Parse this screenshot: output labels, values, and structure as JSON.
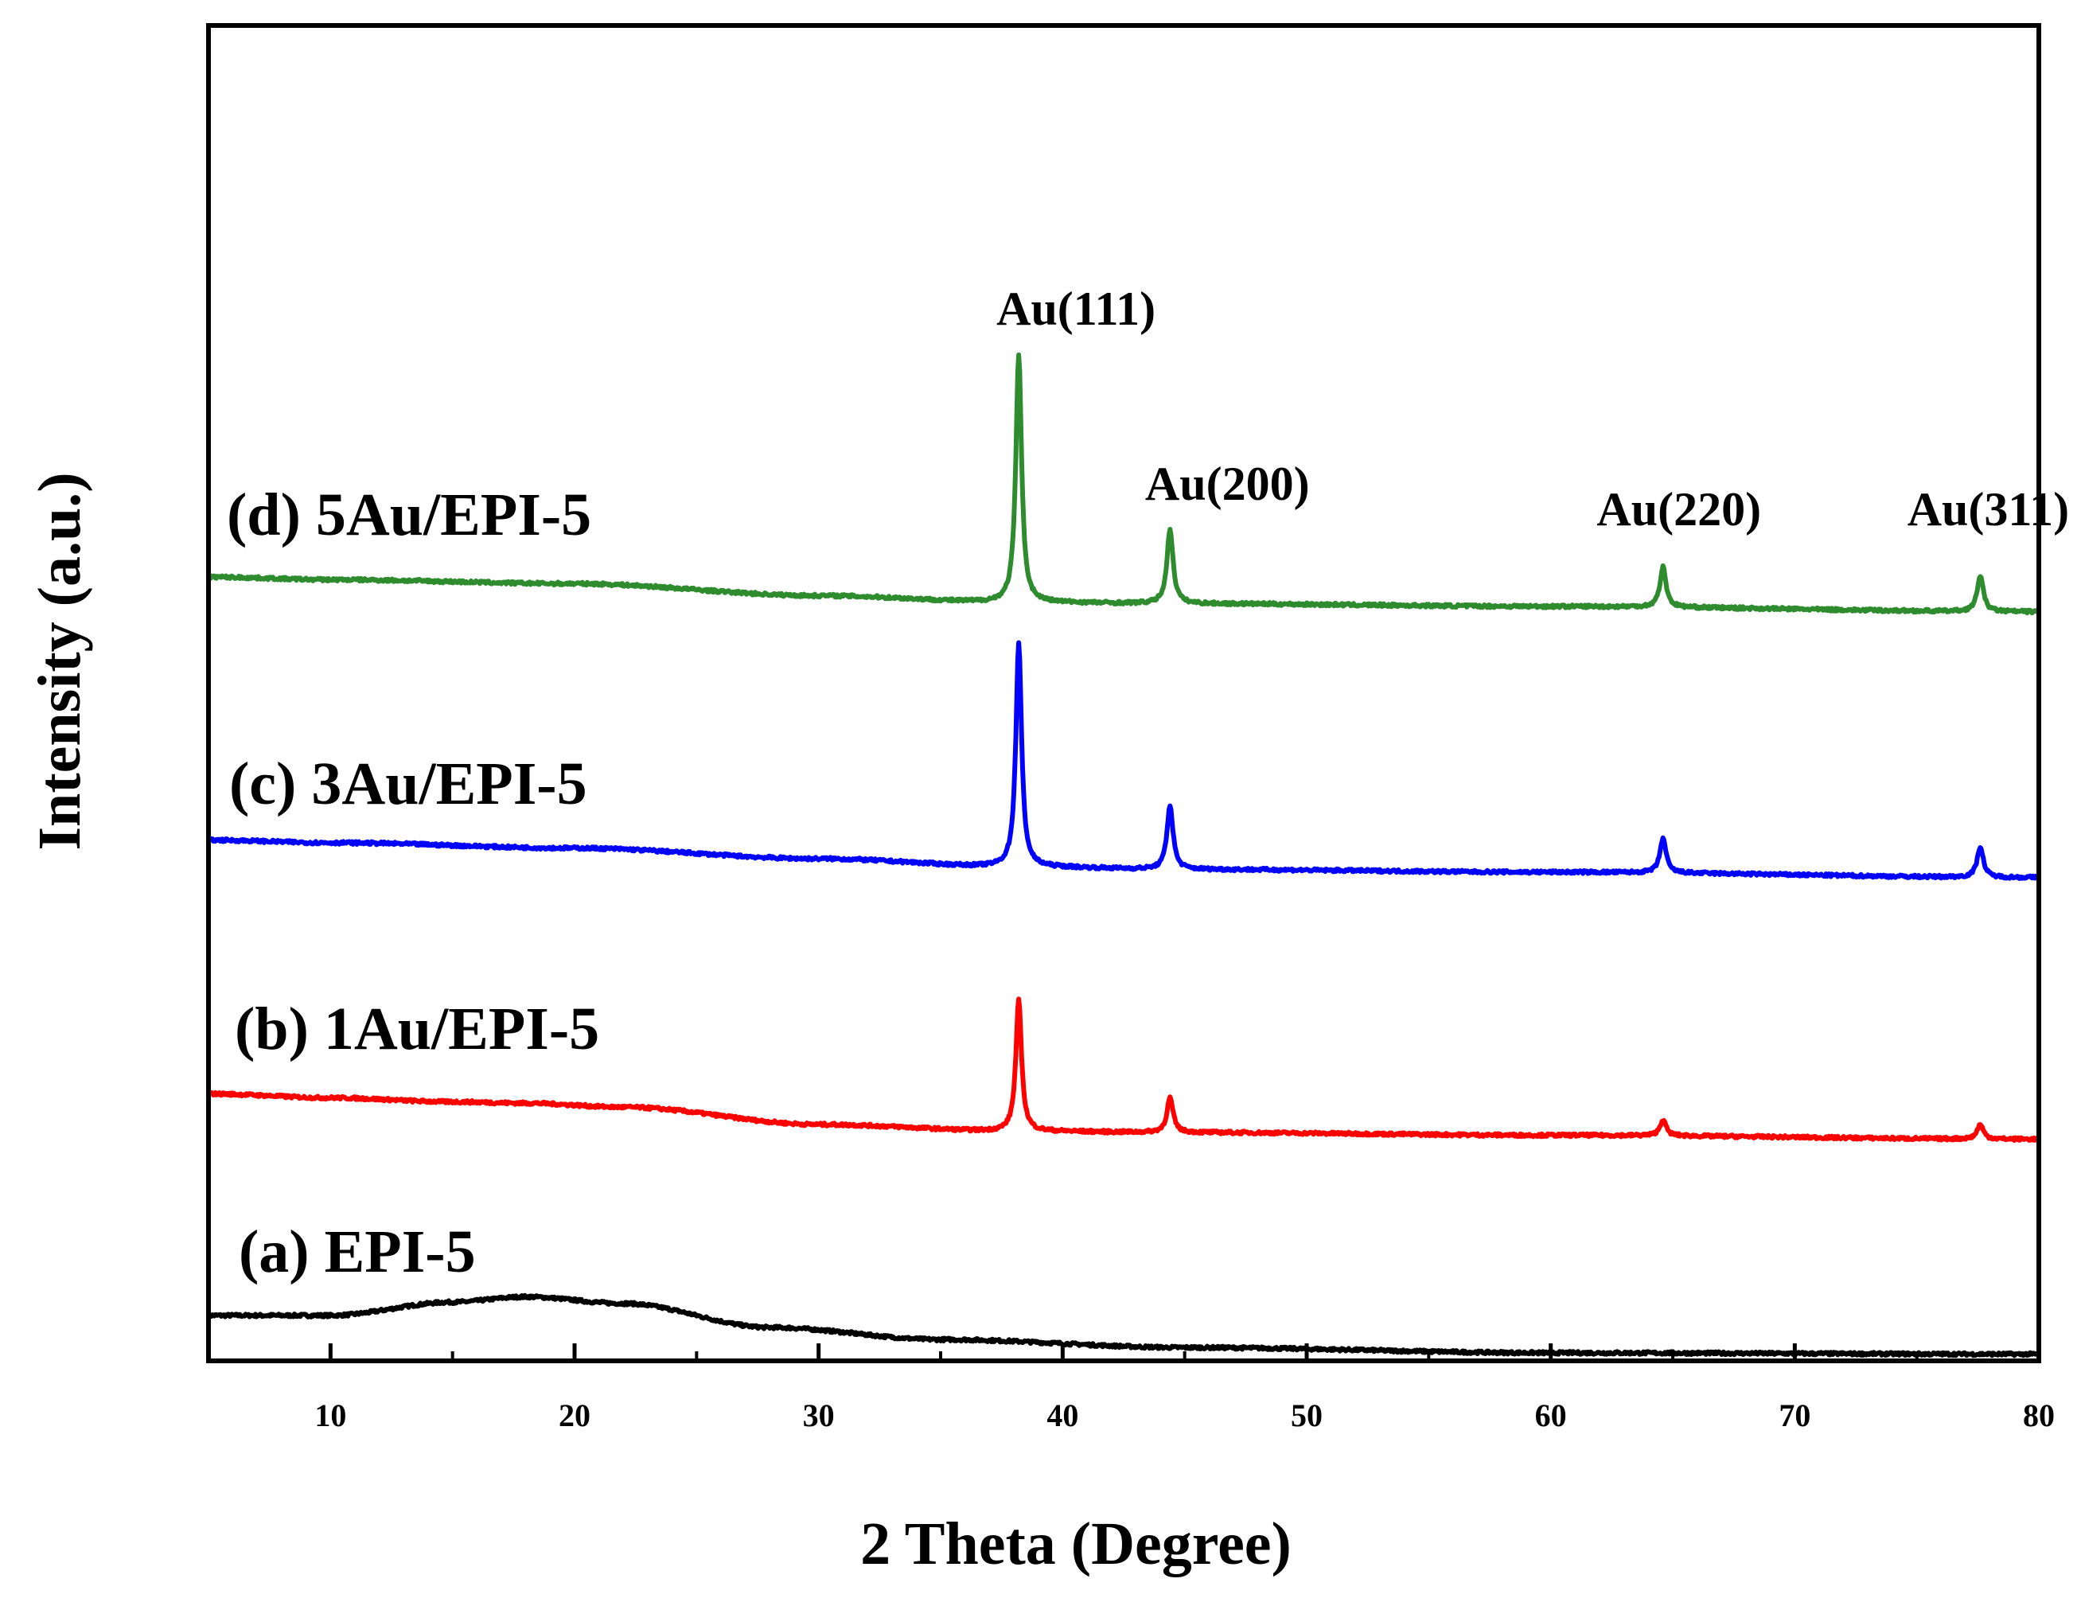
{
  "chart_data": {
    "type": "line",
    "title": "",
    "xlabel": "2 Theta (Degree)",
    "ylabel": "Intensity (a.u.)",
    "xlim": [
      5,
      80
    ],
    "ylim": [
      0,
      1
    ],
    "x_ticks": [
      10,
      20,
      30,
      40,
      50,
      60,
      70,
      80
    ],
    "x_tick_labels": [
      "10",
      "20",
      "30",
      "40",
      "50",
      "60",
      "70",
      "80"
    ],
    "y_ticks_shown": false,
    "grid": false,
    "series": [
      {
        "id": "a",
        "name": "(a) EPI-5",
        "color": "#000000",
        "baseline": [
          [
            5,
            0.034
          ],
          [
            10,
            0.034
          ],
          [
            15,
            0.044
          ],
          [
            18,
            0.048
          ],
          [
            22,
            0.043
          ],
          [
            28,
            0.025
          ],
          [
            35,
            0.016
          ],
          [
            45,
            0.01
          ],
          [
            60,
            0.006
          ],
          [
            80,
            0.005
          ]
        ],
        "peaks": []
      },
      {
        "id": "b",
        "name": "(b) 1Au/EPI-5",
        "color": "#ff0000",
        "baseline": [
          [
            5,
            0.2
          ],
          [
            10,
            0.197
          ],
          [
            15,
            0.194
          ],
          [
            18,
            0.193
          ],
          [
            22,
            0.19
          ],
          [
            30,
            0.177
          ],
          [
            38,
            0.172
          ],
          [
            45,
            0.171
          ],
          [
            60,
            0.169
          ],
          [
            80,
            0.166
          ]
        ],
        "peaks": [
          {
            "center": 38.2,
            "height": 0.098,
            "width": 0.28
          },
          {
            "center": 44.4,
            "height": 0.026,
            "width": 0.3
          },
          {
            "center": 64.6,
            "height": 0.012,
            "width": 0.3
          },
          {
            "center": 77.6,
            "height": 0.011,
            "width": 0.3
          }
        ]
      },
      {
        "id": "c",
        "name": "(c) 3Au/EPI-5",
        "color": "#0000ff",
        "baseline": [
          [
            5,
            0.39
          ],
          [
            10,
            0.388
          ],
          [
            20,
            0.384
          ],
          [
            30,
            0.376
          ],
          [
            38,
            0.37
          ],
          [
            45,
            0.368
          ],
          [
            60,
            0.366
          ],
          [
            80,
            0.362
          ]
        ],
        "peaks": [
          {
            "center": 38.2,
            "height": 0.168,
            "width": 0.28
          },
          {
            "center": 44.4,
            "height": 0.048,
            "width": 0.3
          },
          {
            "center": 64.6,
            "height": 0.026,
            "width": 0.3
          },
          {
            "center": 77.6,
            "height": 0.023,
            "width": 0.3
          }
        ]
      },
      {
        "id": "d",
        "name": "(d) 5Au/EPI-5",
        "color": "#2e8b2e",
        "baseline": [
          [
            5,
            0.587
          ],
          [
            10,
            0.585
          ],
          [
            20,
            0.582
          ],
          [
            30,
            0.573
          ],
          [
            38,
            0.568
          ],
          [
            45,
            0.567
          ],
          [
            60,
            0.565
          ],
          [
            80,
            0.561
          ]
        ],
        "peaks": [
          {
            "center": 38.2,
            "height": 0.186,
            "width": 0.28
          },
          {
            "center": 44.4,
            "height": 0.056,
            "width": 0.3
          },
          {
            "center": 64.6,
            "height": 0.03,
            "width": 0.3
          },
          {
            "center": 77.6,
            "height": 0.027,
            "width": 0.3
          }
        ]
      }
    ],
    "peak_annotations": [
      {
        "label": "Au(111)",
        "x": 38.2
      },
      {
        "label": "Au(200)",
        "x": 44.4
      },
      {
        "label": "Au(220)",
        "x": 64.6
      },
      {
        "label": "Au(311)",
        "x": 77.6
      }
    ]
  }
}
